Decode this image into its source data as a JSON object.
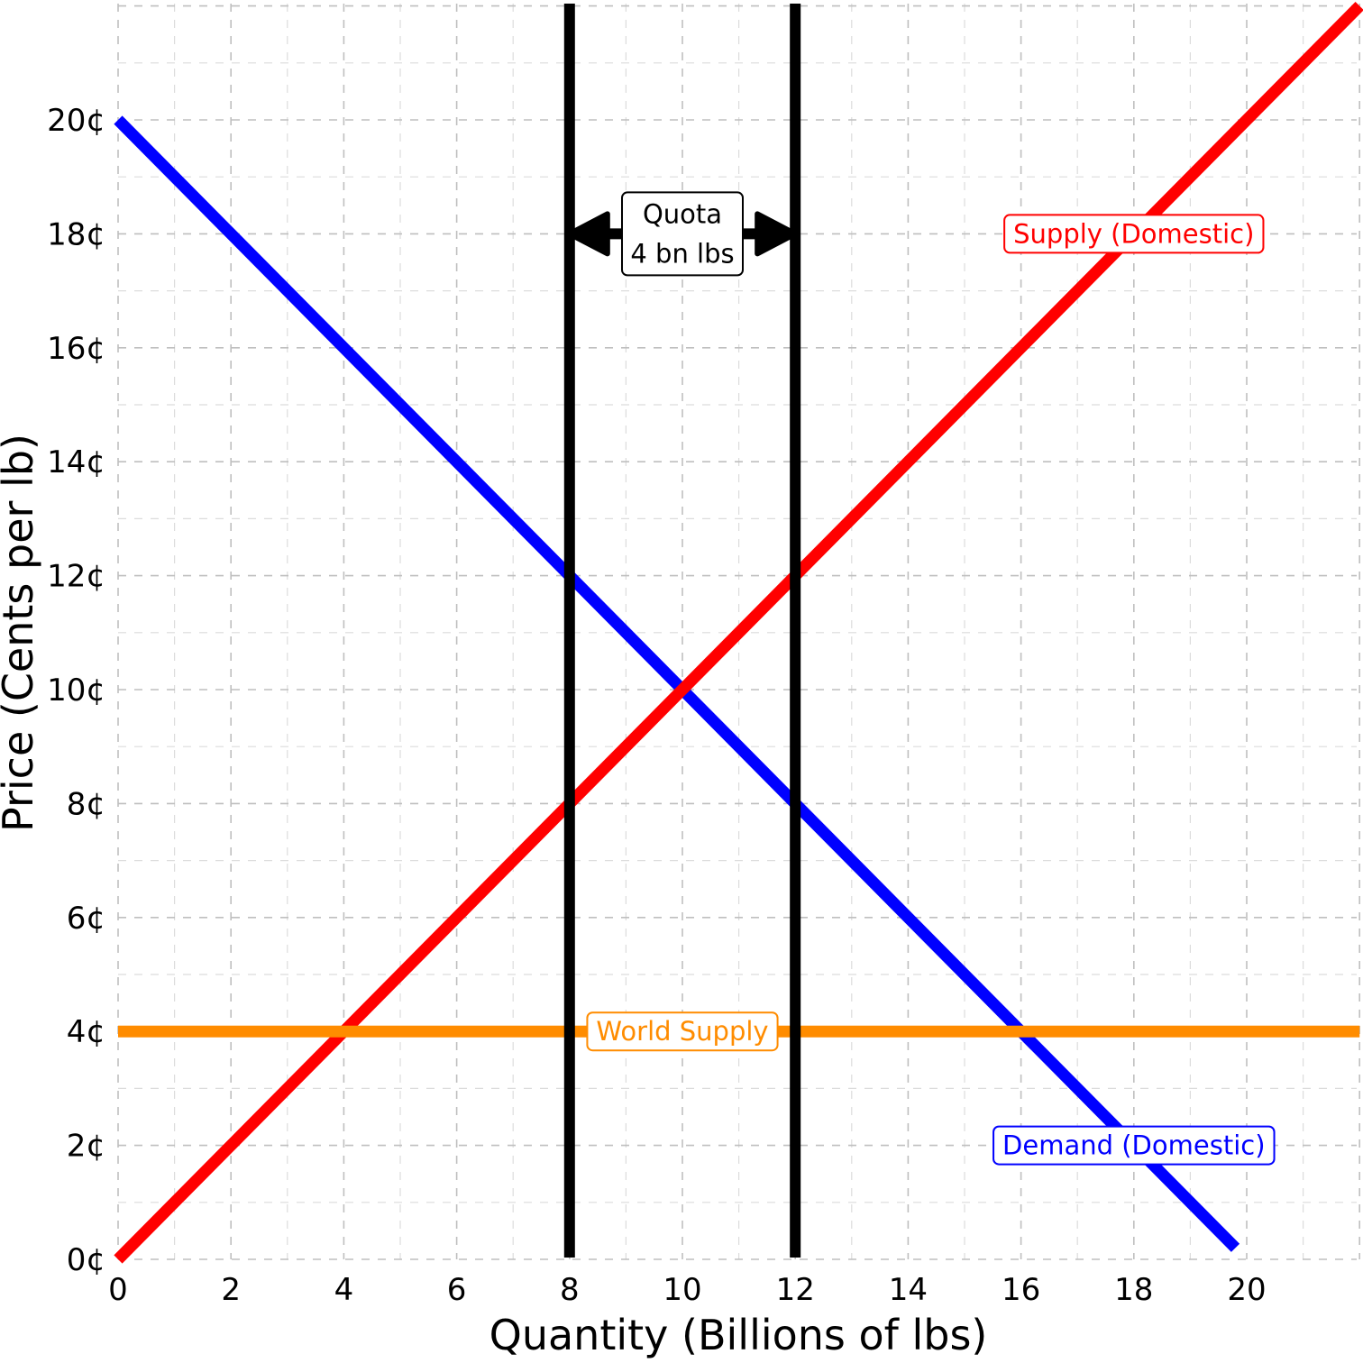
{
  "chart_data": {
    "type": "line",
    "xlabel": "Quantity (Billions of lbs)",
    "ylabel": "Price (Cents per lb)",
    "xlim": [
      0,
      22
    ],
    "ylim": [
      0,
      22
    ],
    "x_ticks": [
      0,
      2,
      4,
      6,
      8,
      10,
      12,
      14,
      16,
      18,
      20
    ],
    "x_tick_labels": [
      "0",
      "2",
      "4",
      "6",
      "8",
      "10",
      "12",
      "14",
      "16",
      "18",
      "20"
    ],
    "y_ticks": [
      0,
      2,
      4,
      6,
      8,
      10,
      12,
      14,
      16,
      18,
      20
    ],
    "y_tick_labels": [
      "0¢",
      "2¢",
      "4¢",
      "6¢",
      "8¢",
      "10¢",
      "12¢",
      "14¢",
      "16¢",
      "18¢",
      "20¢"
    ],
    "grid": true,
    "series": [
      {
        "key": "demand",
        "name": "Demand (Domestic)",
        "color": "#0000ff",
        "x": [
          0,
          19.8
        ],
        "y": [
          20,
          0.2
        ]
      },
      {
        "key": "supply",
        "name": "Supply (Domestic)",
        "color": "#ff0000",
        "x": [
          0,
          22
        ],
        "y": [
          0,
          22
        ]
      },
      {
        "key": "world",
        "name": "World Supply",
        "color": "#ff8c00",
        "x": [
          0,
          22
        ],
        "y": [
          4,
          4
        ]
      }
    ],
    "series_labels": [
      {
        "key": "supply",
        "text": "Supply (Domestic)",
        "color": "#ff0000",
        "x": 18,
        "y": 18
      },
      {
        "key": "demand",
        "text": "Demand (Domestic)",
        "color": "#0000ff",
        "x": 18,
        "y": 2
      },
      {
        "key": "world",
        "text": "World Supply",
        "color": "#ff8c00",
        "x": 10,
        "y": 4
      }
    ],
    "vlines": [
      {
        "x": 8,
        "color": "#000000"
      },
      {
        "x": 12,
        "color": "#000000"
      }
    ],
    "annotation": {
      "lines": [
        "Quota",
        "4 bn lbs"
      ],
      "x": 10,
      "y": 18,
      "arrow_from": 8,
      "arrow_to": 12
    }
  }
}
